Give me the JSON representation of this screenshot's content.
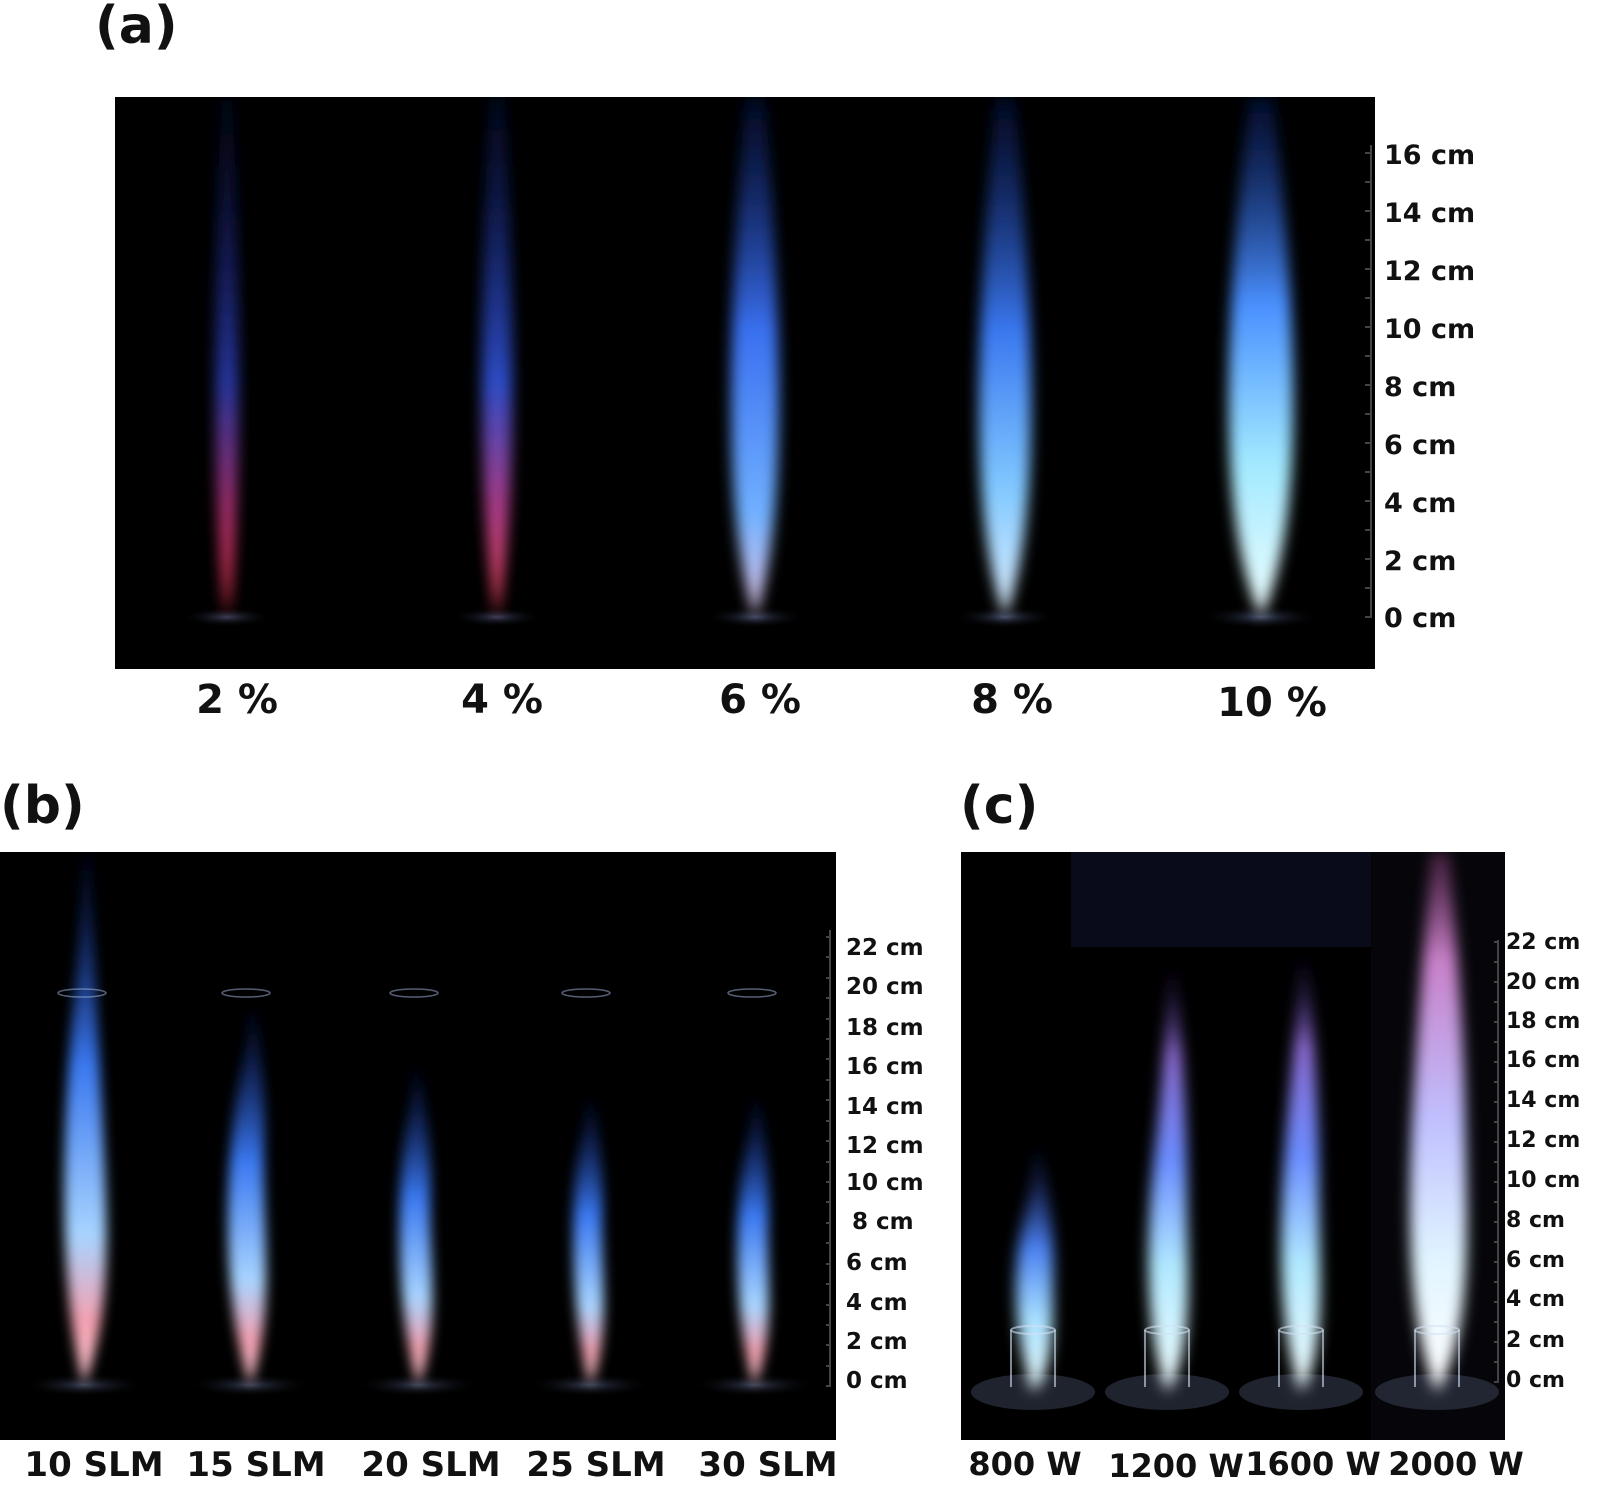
{
  "panels": {
    "a": {
      "label": "(a)",
      "conditions": [
        "2 %",
        "4 %",
        "6 %",
        "8 %",
        "10 %"
      ],
      "ticks": [
        "0 cm",
        "2 cm",
        "4 cm",
        "6 cm",
        "8 cm",
        "10 cm",
        "12 cm",
        "14 cm",
        "16 cm"
      ]
    },
    "b": {
      "label": "(b)",
      "conditions": [
        "10 SLM",
        "15 SLM",
        "20 SLM",
        "25 SLM",
        "30 SLM"
      ],
      "ticks": [
        "0 cm",
        "2 cm",
        "4 cm",
        "6 cm",
        "8 cm",
        "10 cm",
        "12 cm",
        "14 cm",
        "16 cm",
        "18 cm",
        "20 cm",
        "22 cm"
      ]
    },
    "c": {
      "label": "(c)",
      "conditions": [
        "800 W",
        "1200 W",
        "1600 W",
        "2000 W"
      ],
      "ticks": [
        "0 cm",
        "2 cm",
        "4 cm",
        "6 cm",
        "8 cm",
        "10 cm",
        "12 cm",
        "14 cm",
        "16 cm",
        "18 cm",
        "20 cm",
        "22 cm"
      ]
    }
  },
  "colors": {
    "background": "#000000",
    "flame_blue": "#3a6cff",
    "flame_core": "#bfe9ff",
    "flame_red": "#ff5a6a",
    "flame_violet": "#c9a6ff"
  }
}
